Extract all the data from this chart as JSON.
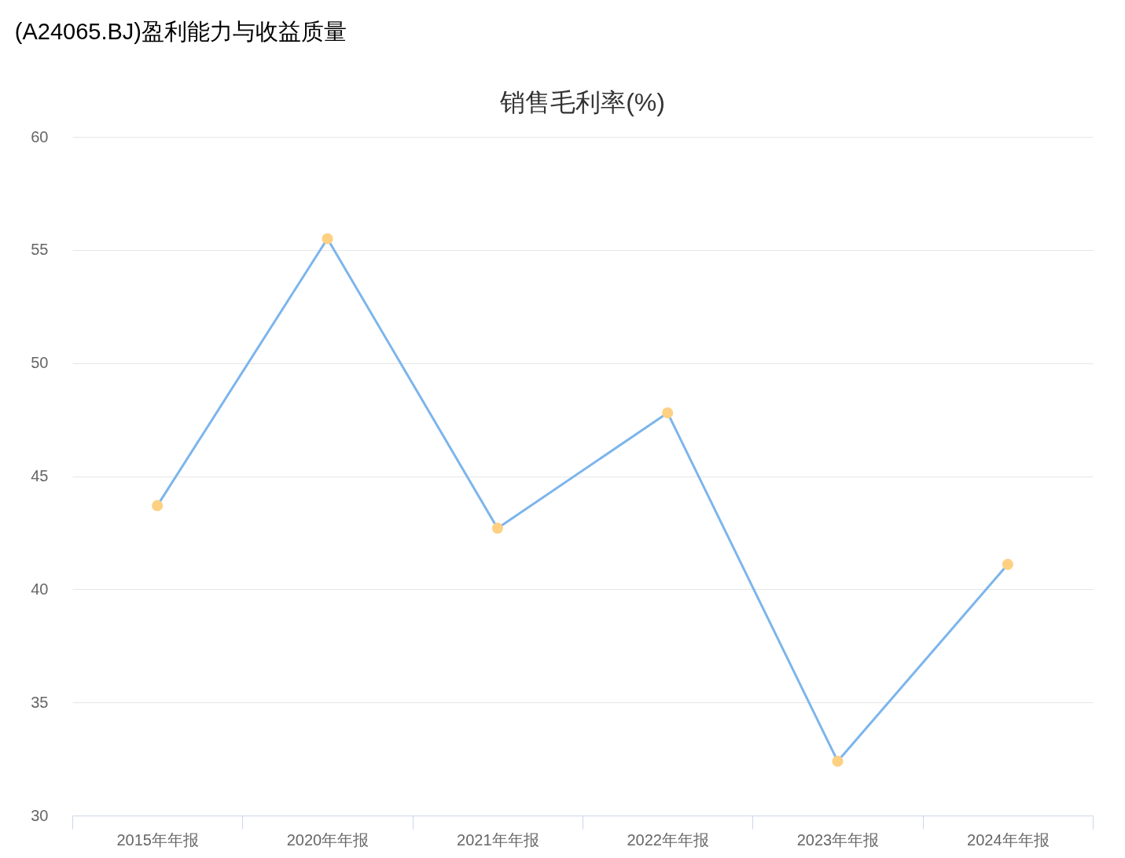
{
  "chart_data": {
    "type": "line",
    "title": "(A24065.BJ)盈利能力与收益质量",
    "subtitle": "销售毛利率(%)",
    "categories": [
      "2015年年报",
      "2020年年报",
      "2021年年报",
      "2022年年报",
      "2023年年报",
      "2024年年报"
    ],
    "series": [
      {
        "color": "#7cb5ec",
        "colors": [
          "#fdd082",
          "#fdd082",
          "#fdd082",
          "#fdd082",
          "#fdd082",
          "#fdd082"
        ],
        "values": [
          43.7,
          55.5,
          42.7,
          47.8,
          32.4,
          41.1
        ]
      }
    ],
    "ylim": [
      30,
      60
    ],
    "yticks": [
      30,
      35,
      40,
      45,
      50,
      55,
      60
    ],
    "grid": "y",
    "marker": "circle",
    "line_style": "solid"
  }
}
